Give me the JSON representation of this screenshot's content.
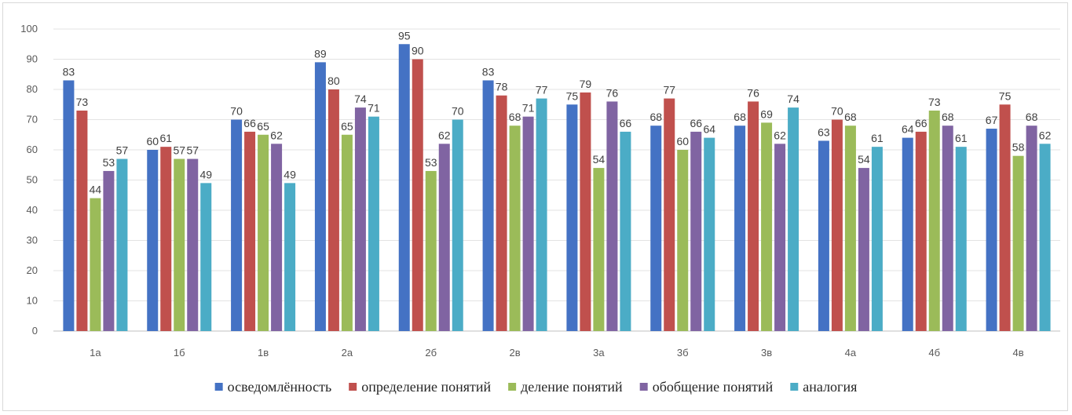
{
  "chart_data": {
    "type": "bar",
    "title": "",
    "xlabel": "",
    "ylabel": "",
    "ylim": [
      0,
      100
    ],
    "yticks": [
      0,
      10,
      20,
      30,
      40,
      50,
      60,
      70,
      80,
      90,
      100
    ],
    "grid": true,
    "legend_position": "bottom",
    "categories": [
      "1а",
      "1б",
      "1в",
      "2а",
      "2б",
      "2в",
      "3а",
      "3б",
      "3в",
      "4а",
      "4б",
      "4в"
    ],
    "series": [
      {
        "name": "осведомлённость",
        "color": "#4472c4",
        "values": [
          83,
          60,
          70,
          89,
          95,
          83,
          75,
          68,
          68,
          63,
          64,
          67
        ]
      },
      {
        "name": "определение понятий",
        "color": "#c0504d",
        "values": [
          73,
          61,
          66,
          80,
          90,
          78,
          79,
          77,
          76,
          70,
          66,
          75
        ]
      },
      {
        "name": "деление понятий",
        "color": "#9bbb59",
        "values": [
          44,
          57,
          65,
          65,
          53,
          68,
          54,
          60,
          69,
          68,
          73,
          58
        ]
      },
      {
        "name": "обобщение понятий",
        "color": "#8064a2",
        "values": [
          53,
          57,
          62,
          74,
          62,
          71,
          76,
          66,
          62,
          54,
          68,
          68
        ]
      },
      {
        "name": "аналогия",
        "color": "#4bacc6",
        "values": [
          57,
          49,
          49,
          71,
          70,
          77,
          66,
          64,
          74,
          61,
          61,
          62
        ]
      }
    ]
  }
}
